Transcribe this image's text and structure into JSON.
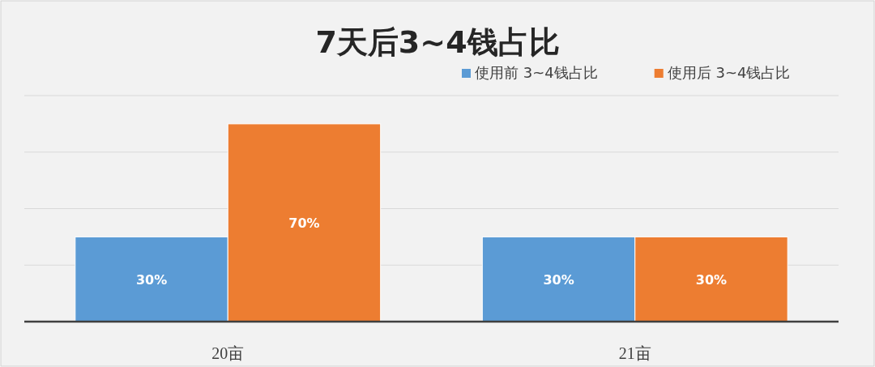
{
  "chart_data": {
    "type": "bar",
    "title": "7天后3~4钱占比",
    "categories": [
      "20亩",
      "21亩"
    ],
    "series": [
      {
        "name": "使用前 3~4钱占比",
        "color": "#5b9bd5",
        "values": [
          30,
          30
        ],
        "value_labels": [
          "30%",
          "30%"
        ]
      },
      {
        "name": "使用后 3~4钱占比",
        "color": "#ed7d31",
        "values": [
          70,
          30
        ],
        "value_labels": [
          "70%",
          "30%"
        ]
      }
    ],
    "ylim": [
      0,
      80
    ],
    "yticks": [
      {
        "value": 0,
        "label": null
      },
      {
        "value": 20,
        "label": null
      },
      {
        "value": 40,
        "label": null
      },
      {
        "value": 60,
        "label": null
      },
      {
        "value": 80,
        "label": null
      }
    ],
    "grid": "y",
    "legend": "top right",
    "tick_labels": "x"
  }
}
